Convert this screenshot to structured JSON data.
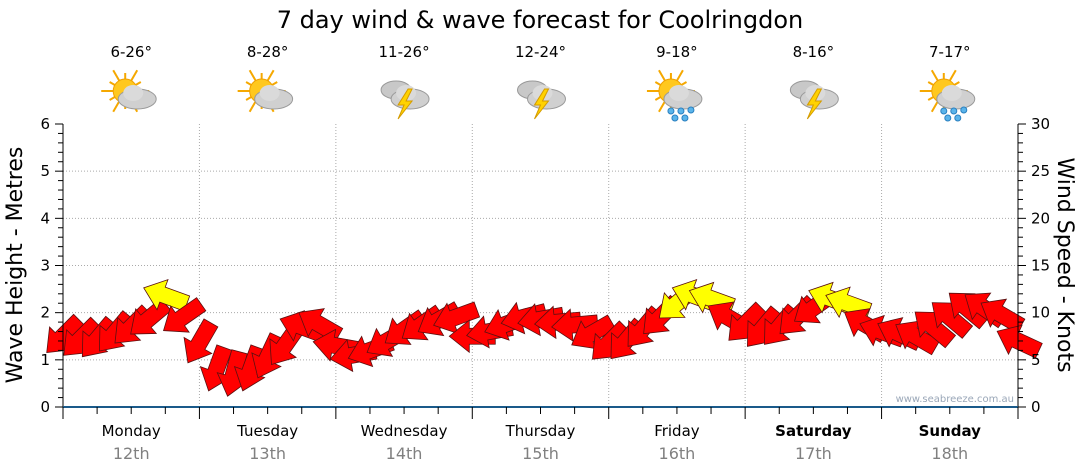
{
  "chart_data": {
    "type": "scatter",
    "title": "7 day wind & wave forecast for Coolringdon",
    "ylabel_left": "Wave Height - Metres",
    "ylabel_right": "Wind Speed - Knots",
    "ylim_left": [
      0,
      6
    ],
    "ylim_right": [
      0,
      30
    ],
    "yticks_left": [
      "0",
      "1",
      "2",
      "3",
      "4",
      "5",
      "6"
    ],
    "yticks_right": [
      "0",
      "5",
      "10",
      "15",
      "20",
      "25",
      "30"
    ],
    "grid": true,
    "watermark": "www.seabreeze.com.au",
    "days": [
      {
        "name": "Monday",
        "date": "12th",
        "temp": "6-26°",
        "icon": "partly-cloudy-icon",
        "weekend": false
      },
      {
        "name": "Tuesday",
        "date": "13th",
        "temp": "8-28°",
        "icon": "partly-cloudy-icon",
        "weekend": false
      },
      {
        "name": "Wednesday",
        "date": "14th",
        "temp": "11-26°",
        "icon": "thunderstorm-icon",
        "weekend": false
      },
      {
        "name": "Thursday",
        "date": "15th",
        "temp": "12-24°",
        "icon": "thunderstorm-icon",
        "weekend": false
      },
      {
        "name": "Friday",
        "date": "16th",
        "temp": "9-18°",
        "icon": "showers-icon",
        "weekend": false
      },
      {
        "name": "Saturday",
        "date": "17th",
        "temp": "8-16°",
        "icon": "thunderstorm-icon",
        "weekend": true
      },
      {
        "name": "Sunday",
        "date": "18th",
        "temp": "7-17°",
        "icon": "showers-icon",
        "weekend": true
      }
    ],
    "wind": {
      "hours_from_start": [
        0,
        3,
        6,
        9,
        12,
        15,
        18,
        21,
        24,
        27,
        30,
        33,
        36,
        39,
        42,
        45,
        48,
        51,
        54,
        57,
        60,
        63,
        66,
        69,
        72,
        75,
        78,
        81,
        84,
        87,
        90,
        93,
        96,
        99,
        102,
        105,
        108,
        111,
        114,
        117,
        120,
        123,
        126,
        129,
        132,
        135,
        138,
        141,
        144,
        147,
        150,
        153,
        156,
        159,
        162,
        165,
        168
      ],
      "knots": [
        7.5,
        7.2,
        7.2,
        7.8,
        8.5,
        9.3,
        11.8,
        9.5,
        6.8,
        4.0,
        3.5,
        4.0,
        5.3,
        6.5,
        8.5,
        8.8,
        6.5,
        5.5,
        6.0,
        7.0,
        8.2,
        8.7,
        9.2,
        9.5,
        7.5,
        8.0,
        8.8,
        9.5,
        9.3,
        9.0,
        8.7,
        7.8,
        6.8,
        7.0,
        8.3,
        9.5,
        11.0,
        11.8,
        11.5,
        9.5,
        8.8,
        8.3,
        8.5,
        9.5,
        10.5,
        11.5,
        11.0,
        8.8,
        8.0,
        7.8,
        7.5,
        8.5,
        9.5,
        10.5,
        10.5,
        9.8,
        7.0
      ],
      "pointing_bearing_deg": [
        225,
        225,
        220,
        220,
        225,
        230,
        290,
        235,
        210,
        200,
        195,
        200,
        205,
        215,
        290,
        300,
        280,
        260,
        250,
        240,
        235,
        235,
        240,
        250,
        270,
        260,
        250,
        255,
        260,
        265,
        265,
        240,
        225,
        220,
        220,
        225,
        230,
        290,
        290,
        300,
        225,
        220,
        220,
        225,
        235,
        290,
        290,
        300,
        290,
        295,
        300,
        310,
        310,
        310,
        305,
        300,
        295
      ],
      "highlight_threshold_knots": 11,
      "color_normal": "#ff0000",
      "color_highlight": "#ffff00"
    }
  }
}
